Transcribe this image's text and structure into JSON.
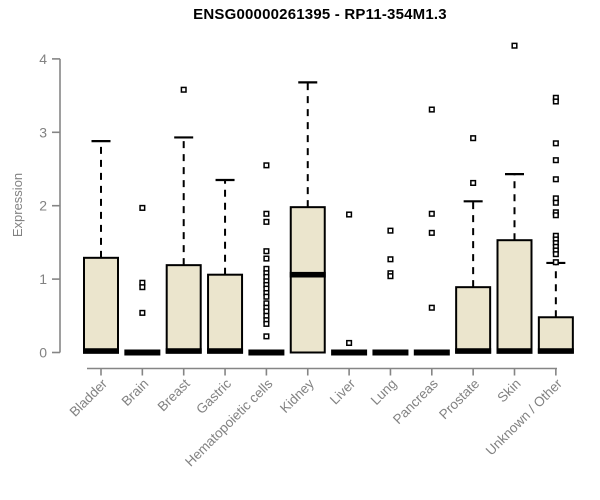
{
  "chart_data": {
    "type": "boxplot",
    "title": "ENSG00000261395 - RP11-354M1.3",
    "xlabel": "",
    "ylabel": "Expression",
    "ylim": [
      0,
      4.3
    ],
    "yticks": [
      0,
      1,
      2,
      3,
      4
    ],
    "grid": false,
    "legend": "none",
    "categories": [
      "Bladder",
      "Brain",
      "Breast",
      "Gastric",
      "Hematopoietic cells",
      "Kidney",
      "Liver",
      "Lung",
      "Pancreas",
      "Prostate",
      "Skin",
      "Unknown / Other"
    ],
    "series": [
      {
        "name": "Bladder",
        "whisker_low": 0,
        "q1": 0,
        "median": 0.02,
        "q3": 1.29,
        "whisker_high": 2.88,
        "outliers": []
      },
      {
        "name": "Brain",
        "whisker_low": 0,
        "q1": 0,
        "median": 0,
        "q3": 0,
        "whisker_high": 0,
        "outliers": [
          1.97,
          0.95,
          0.89,
          0.54
        ]
      },
      {
        "name": "Breast",
        "whisker_low": 0,
        "q1": 0,
        "median": 0.02,
        "q3": 1.19,
        "whisker_high": 2.93,
        "outliers": [
          3.58
        ]
      },
      {
        "name": "Gastric",
        "whisker_low": 0,
        "q1": 0,
        "median": 0.02,
        "q3": 1.06,
        "whisker_high": 2.35,
        "outliers": []
      },
      {
        "name": "Hematopoietic cells",
        "whisker_low": 0,
        "q1": 0,
        "median": 0,
        "q3": 0,
        "whisker_high": 0,
        "outliers": [
          2.55,
          1.89,
          1.78,
          1.38,
          1.28,
          1.14,
          1.08,
          1.03,
          0.97,
          0.92,
          0.87,
          0.81,
          0.76,
          0.67,
          0.61,
          0.56,
          0.5,
          0.44,
          0.39,
          0.22
        ]
      },
      {
        "name": "Kidney",
        "whisker_low": 0,
        "q1": 0,
        "median": 1.06,
        "q3": 1.98,
        "whisker_high": 3.68,
        "outliers": []
      },
      {
        "name": "Liver",
        "whisker_low": 0,
        "q1": 0,
        "median": 0,
        "q3": 0,
        "whisker_high": 0,
        "outliers": [
          1.88,
          0.13
        ]
      },
      {
        "name": "Lung",
        "whisker_low": 0,
        "q1": 0,
        "median": 0,
        "q3": 0,
        "whisker_high": 0,
        "outliers": [
          1.66,
          1.27,
          1.08,
          1.04
        ]
      },
      {
        "name": "Pancreas",
        "whisker_low": 0,
        "q1": 0,
        "median": 0,
        "q3": 0,
        "whisker_high": 0,
        "outliers": [
          3.31,
          1.89,
          1.63,
          0.61
        ]
      },
      {
        "name": "Prostate",
        "whisker_low": 0,
        "q1": 0,
        "median": 0.02,
        "q3": 0.89,
        "whisker_high": 2.06,
        "outliers": [
          2.92,
          2.31
        ]
      },
      {
        "name": "Skin",
        "whisker_low": 0,
        "q1": 0,
        "median": 0.02,
        "q3": 1.53,
        "whisker_high": 2.43,
        "outliers": [
          4.18
        ]
      },
      {
        "name": "Unknown / Other",
        "whisker_low": 0,
        "q1": 0,
        "median": 0.02,
        "q3": 0.48,
        "whisker_high": 1.22,
        "outliers": [
          3.47,
          3.42,
          2.85,
          2.62,
          2.36,
          2.1,
          2.04,
          1.91,
          1.87,
          1.59,
          1.54,
          1.49,
          1.44,
          1.39,
          1.34,
          1.23
        ]
      }
    ]
  },
  "colors": {
    "box_fill": "#ebe5cd",
    "box_border": "#000000",
    "median": "#000000",
    "whisker": "#000000",
    "outlier_stroke": "#000000",
    "axis": "#858585",
    "axis_text": "#828282",
    "title_text": "#000000",
    "background": "#ffffff"
  }
}
